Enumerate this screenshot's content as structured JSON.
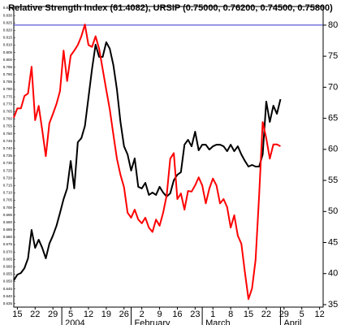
{
  "chart_data": {
    "type": "line",
    "title": "Relative Strength Index (61.4082), URSIP (0.75000, 0.76200, 0.74500, 0.75800)",
    "x": [
      -1,
      0,
      1,
      2,
      3,
      4,
      5,
      6,
      7,
      8,
      9,
      10,
      11,
      12,
      13,
      14,
      15,
      16,
      17,
      18,
      19,
      20,
      21,
      22,
      23,
      24,
      25,
      26,
      27,
      28,
      29,
      30,
      31,
      32,
      33,
      34,
      35,
      36,
      37,
      38,
      39,
      40,
      41,
      42,
      43,
      44,
      45,
      46,
      47,
      48,
      49,
      50,
      51,
      52,
      53,
      54,
      55,
      56,
      57,
      58,
      59,
      60,
      61,
      62,
      63,
      64,
      65,
      66,
      67,
      68,
      69,
      70,
      71,
      72,
      73,
      74
    ],
    "series": [
      {
        "name": "URSIP",
        "color": "#000000",
        "axis": "y",
        "values": [
          0.6508,
          0.6547,
          0.6558,
          0.6591,
          0.6657,
          0.6849,
          0.6728,
          0.6783,
          0.6728,
          0.6657,
          0.6756,
          0.6811,
          0.6877,
          0.6965,
          0.7058,
          0.713,
          0.7316,
          0.713,
          0.7443,
          0.747,
          0.7553,
          0.7745,
          0.7938,
          0.8103,
          0.802,
          0.802,
          0.8119,
          0.8075,
          0.7965,
          0.78,
          0.758,
          0.7415,
          0.736,
          0.7251,
          0.7333,
          0.7141,
          0.713,
          0.7168,
          0.7086,
          0.7102,
          0.7086,
          0.7141,
          0.7102,
          0.7075,
          0.7097,
          0.7185,
          0.7223,
          0.724,
          0.7426,
          0.7459,
          0.7415,
          0.7514,
          0.7388,
          0.7426,
          0.7426,
          0.7393,
          0.7415,
          0.7426,
          0.7426,
          0.7415,
          0.7382,
          0.7426,
          0.7382,
          0.7415,
          0.736,
          0.7316,
          0.7278,
          0.7289,
          0.7278,
          0.7278,
          0.736,
          0.7718,
          0.758,
          0.769,
          0.7635,
          0.7734
        ]
      },
      {
        "name": "Relative Strength Index",
        "color": "#ff0000",
        "axis": "y2",
        "values": [
          65.1,
          66.6,
          66.6,
          68.6,
          69.0,
          73.3,
          64.7,
          67.0,
          63.1,
          58.9,
          64.2,
          65.7,
          67.3,
          69.4,
          75.9,
          71.0,
          75.1,
          75.9,
          76.8,
          78.2,
          80.1,
          76.8,
          76.5,
          78.2,
          76.2,
          72.9,
          69.6,
          66.4,
          62.4,
          58.5,
          55.9,
          53.9,
          49.8,
          49.0,
          50.3,
          48.7,
          48.1,
          49.0,
          47.4,
          46.7,
          48.7,
          47.7,
          49.8,
          52.6,
          58.5,
          59.4,
          52.0,
          52.9,
          50.3,
          53.3,
          53.2,
          54.2,
          55.5,
          54.2,
          51.3,
          53.7,
          55.3,
          54.2,
          51.3,
          52.0,
          50.7,
          47.4,
          49.4,
          46.1,
          44.8,
          40.2,
          35.9,
          37.6,
          42.2,
          52.6,
          64.4,
          61.8,
          58.5,
          60.8,
          60.8,
          60.5
        ]
      }
    ],
    "xlim": [
      -1,
      86
    ],
    "xticks": [
      {
        "value": 0,
        "label": "15"
      },
      {
        "value": 5,
        "label": "22"
      },
      {
        "value": 10,
        "label": "29"
      },
      {
        "value": 15,
        "label": "5"
      },
      {
        "value": 20,
        "label": "12"
      },
      {
        "value": 25,
        "label": "19"
      },
      {
        "value": 30,
        "label": "26"
      },
      {
        "value": 35,
        "label": "2"
      },
      {
        "value": 40,
        "label": "9"
      },
      {
        "value": 45,
        "label": "16"
      },
      {
        "value": 50,
        "label": "23"
      },
      {
        "value": 55,
        "label": "1"
      },
      {
        "value": 60,
        "label": "8"
      },
      {
        "value": 65,
        "label": "15"
      },
      {
        "value": 70,
        "label": "22"
      },
      {
        "value": 75,
        "label": "29"
      },
      {
        "value": 80,
        "label": "5"
      },
      {
        "value": 85,
        "label": "12"
      }
    ],
    "x_groups": [
      {
        "label": "2004",
        "start": 12.5
      },
      {
        "label": "February",
        "start": 32
      },
      {
        "label": "March",
        "start": 52
      },
      {
        "label": "April",
        "start": 74
      }
    ],
    "ylim": [
      0.6327,
      0.8361
    ],
    "yticks": [
      0.835,
      {
        "value": 0.83,
        "label": "0.830"
      },
      0.825,
      {
        "value": 0.82,
        "label": "0.820"
      },
      0.815,
      {
        "value": 0.81,
        "label": "0.810"
      },
      0.805,
      {
        "value": 0.8,
        "label": "0.800"
      },
      0.795,
      {
        "value": 0.79,
        "label": "0.790"
      },
      0.785,
      {
        "value": 0.78,
        "label": "0.780"
      },
      0.775,
      {
        "value": 0.77,
        "label": "0.770"
      },
      0.765,
      {
        "value": 0.76,
        "label": "0.760"
      },
      0.755,
      {
        "value": 0.75,
        "label": "0.750"
      },
      0.745,
      {
        "value": 0.74,
        "label": "0.740"
      },
      0.735,
      {
        "value": 0.73,
        "label": "0.730"
      },
      0.725,
      {
        "value": 0.72,
        "label": "0.720"
      },
      0.715,
      {
        "value": 0.71,
        "label": "0.710"
      },
      0.705,
      {
        "value": 0.7,
        "label": "0.700"
      },
      0.695,
      {
        "value": 0.69,
        "label": "0.690"
      },
      0.685,
      {
        "value": 0.68,
        "label": "0.680"
      },
      0.675,
      {
        "value": 0.67,
        "label": "0.670"
      },
      0.665,
      {
        "value": 0.66,
        "label": "0.660"
      },
      0.655,
      {
        "value": 0.65,
        "label": "0.650"
      },
      0.645,
      {
        "value": 0.64,
        "label": "0.640"
      },
      0.635
    ],
    "y2lim": [
      34.6,
      83.0
    ],
    "y2ticks": [
      35,
      40,
      45,
      50,
      55,
      60,
      65,
      70,
      75,
      80
    ],
    "reference_lines": [
      {
        "value": 80,
        "axis": "y2",
        "color": "#3333cc"
      }
    ],
    "grid": false
  }
}
